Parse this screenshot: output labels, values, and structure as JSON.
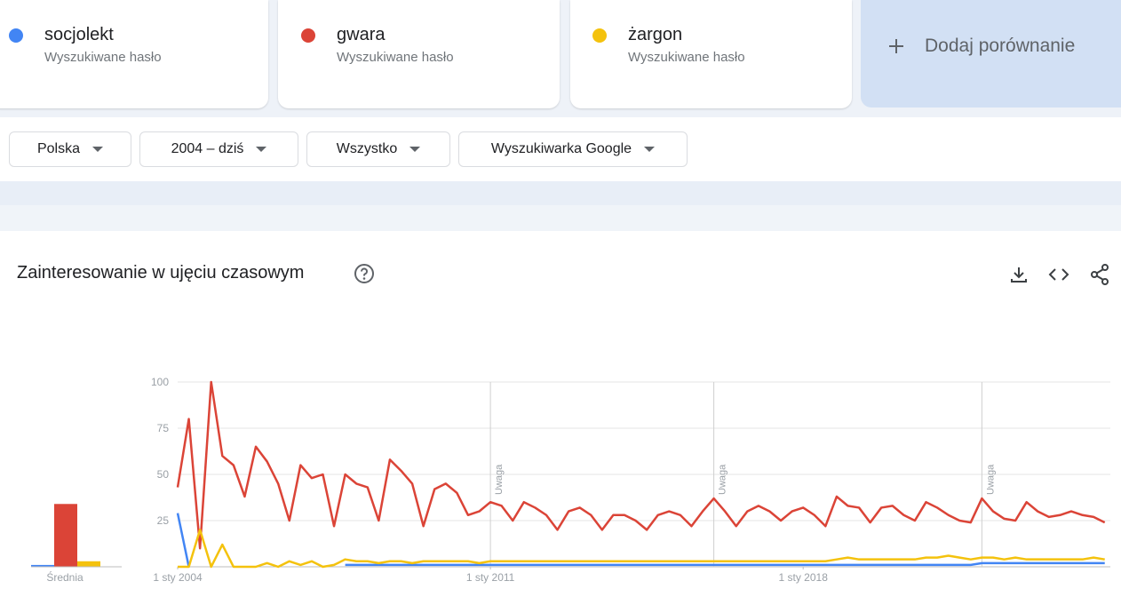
{
  "ui": {
    "term_subtitle": "Wyszukiwane hasło",
    "add_comparison": "Dodaj porównanie",
    "filters": [
      "Polska",
      "2004 – dziś",
      "Wszystko",
      "Wyszukiwarka Google"
    ],
    "section_title": "Zainteresowanie w ujęciu czasowym"
  },
  "chart_data": [
    {
      "type": "line",
      "xlim": [
        2004,
        2024.875
      ],
      "ylim": [
        0,
        100
      ],
      "yticks": [
        25,
        50,
        75,
        100
      ],
      "grid": true,
      "xticks": [
        {
          "value": 2004,
          "label": "1 sty 2004"
        },
        {
          "value": 2011,
          "label": "1 sty 2011"
        },
        {
          "value": 2018,
          "label": "1 sty 2018"
        }
      ],
      "annotations": [
        {
          "x": 2011,
          "label": "Uwaga"
        },
        {
          "x": 2016,
          "label": "Uwaga"
        },
        {
          "x": 2022,
          "label": "Uwaga"
        }
      ],
      "x": [
        2004,
        2004.25,
        2004.5,
        2004.75,
        2005,
        2005.25,
        2005.5,
        2005.75,
        2006,
        2006.25,
        2006.5,
        2006.75,
        2007,
        2007.25,
        2007.5,
        2007.75,
        2008,
        2008.25,
        2008.5,
        2008.75,
        2009,
        2009.25,
        2009.5,
        2009.75,
        2010,
        2010.25,
        2010.5,
        2010.75,
        2011,
        2011.25,
        2011.5,
        2011.75,
        2012,
        2012.25,
        2012.5,
        2012.75,
        2013,
        2013.25,
        2013.5,
        2013.75,
        2014,
        2014.25,
        2014.5,
        2014.75,
        2015,
        2015.25,
        2015.5,
        2015.75,
        2016,
        2016.25,
        2016.5,
        2016.75,
        2017,
        2017.25,
        2017.5,
        2017.75,
        2018,
        2018.25,
        2018.5,
        2018.75,
        2019,
        2019.25,
        2019.5,
        2019.75,
        2020,
        2020.25,
        2020.5,
        2020.75,
        2021,
        2021.25,
        2021.5,
        2021.75,
        2022,
        2022.25,
        2022.5,
        2022.75,
        2023,
        2023.25,
        2023.5,
        2023.75,
        2024,
        2024.25,
        2024.5,
        2024.75
      ],
      "series": [
        {
          "name": "socjolekt",
          "color": "#4285f4",
          "values": [
            29,
            0,
            null,
            null,
            null,
            null,
            null,
            null,
            null,
            null,
            null,
            null,
            null,
            null,
            null,
            1,
            1,
            1,
            1,
            1,
            1,
            1,
            1,
            1,
            1,
            1,
            1,
            1,
            1,
            1,
            1,
            1,
            1,
            1,
            1,
            1,
            1,
            1,
            1,
            1,
            1,
            1,
            1,
            1,
            1,
            1,
            1,
            1,
            1,
            1,
            1,
            1,
            1,
            1,
            1,
            1,
            1,
            1,
            1,
            1,
            1,
            1,
            1,
            1,
            1,
            1,
            1,
            1,
            1,
            1,
            1,
            1,
            2,
            2,
            2,
            2,
            2,
            2,
            2,
            2,
            2,
            2,
            2,
            2
          ]
        },
        {
          "name": "gwara",
          "color": "#db4437",
          "values": [
            43,
            80,
            10,
            100,
            60,
            55,
            38,
            65,
            57,
            45,
            25,
            55,
            48,
            50,
            22,
            50,
            45,
            43,
            25,
            58,
            52,
            45,
            22,
            42,
            45,
            40,
            28,
            30,
            35,
            33,
            25,
            35,
            32,
            28,
            20,
            30,
            32,
            28,
            20,
            28,
            28,
            25,
            20,
            28,
            30,
            28,
            22,
            30,
            37,
            30,
            22,
            30,
            33,
            30,
            25,
            30,
            32,
            28,
            22,
            38,
            33,
            32,
            24,
            32,
            33,
            28,
            25,
            35,
            32,
            28,
            25,
            24,
            37,
            30,
            26,
            25,
            35,
            30,
            27,
            28,
            30,
            28,
            27,
            24
          ]
        },
        {
          "name": "żargon",
          "color": "#f4c20d",
          "values": [
            0,
            0,
            20,
            0,
            12,
            0,
            0,
            0,
            2,
            0,
            3,
            1,
            3,
            0,
            1,
            4,
            3,
            3,
            2,
            3,
            3,
            2,
            3,
            3,
            3,
            3,
            3,
            2,
            3,
            3,
            3,
            3,
            3,
            3,
            3,
            3,
            3,
            3,
            3,
            3,
            3,
            3,
            3,
            3,
            3,
            3,
            3,
            3,
            3,
            3,
            3,
            3,
            3,
            3,
            3,
            3,
            3,
            3,
            3,
            4,
            5,
            4,
            4,
            4,
            4,
            4,
            4,
            5,
            5,
            6,
            5,
            4,
            5,
            5,
            4,
            5,
            4,
            4,
            4,
            4,
            4,
            4,
            5,
            4
          ]
        }
      ]
    },
    {
      "type": "bar",
      "categories": [
        "Średnia"
      ],
      "ylim": [
        0,
        100
      ],
      "series": [
        {
          "color": "#4285f4",
          "values": [
            1
          ]
        },
        {
          "color": "#db4437",
          "values": [
            34
          ]
        },
        {
          "color": "#f4c20d",
          "values": [
            3
          ]
        }
      ]
    }
  ]
}
